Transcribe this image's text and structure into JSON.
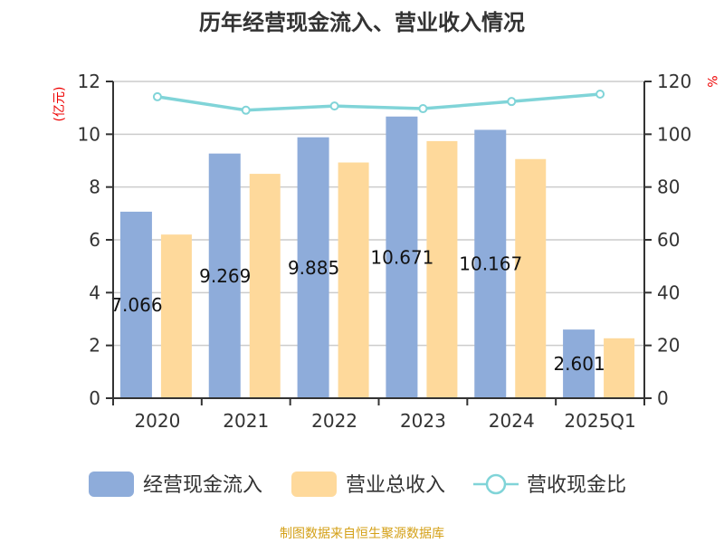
{
  "chart_data": {
    "type": "bar",
    "title": "历年经营现金流入、营业收入情况",
    "ylabel_left": "(亿元)",
    "ylabel_right": "%",
    "categories": [
      "2020",
      "2021",
      "2022",
      "2023",
      "2024",
      "2025Q1"
    ],
    "ylim_left": [
      0,
      12
    ],
    "yticks_left": [
      0,
      2,
      4,
      6,
      8,
      10,
      12
    ],
    "ylim_right": [
      0,
      120
    ],
    "yticks_right": [
      0,
      20,
      40,
      60,
      80,
      100,
      120
    ],
    "grid": true,
    "legend_position": "bottom",
    "series": [
      {
        "name": "经营现金流入",
        "type": "bar",
        "axis": "left",
        "color": "#8eacda",
        "values": [
          7.066,
          9.269,
          9.885,
          10.671,
          10.167,
          2.601
        ],
        "labels": [
          "7.066",
          "9.269",
          "9.885",
          "10.671",
          "10.167",
          "2.601"
        ]
      },
      {
        "name": "营业总收入",
        "type": "bar",
        "axis": "left",
        "color": "#fed99b",
        "values": [
          6.2,
          8.5,
          8.93,
          9.74,
          9.06,
          2.27
        ]
      },
      {
        "name": "营收现金比",
        "type": "line",
        "axis": "right",
        "color": "#80d4d8",
        "values": [
          114.2,
          109.1,
          110.7,
          109.7,
          112.4,
          115.2
        ]
      }
    ]
  },
  "footer": "制图数据来自恒生聚源数据库"
}
